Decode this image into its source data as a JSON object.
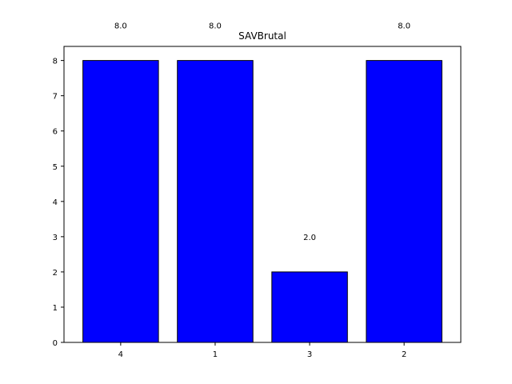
{
  "chart_data": {
    "type": "bar",
    "title": "SAVBrutal",
    "categories": [
      "4",
      "1",
      "3",
      "2"
    ],
    "values": [
      8,
      8,
      2,
      8
    ],
    "value_labels": [
      "8.0",
      "8.0",
      "2.0",
      "8.0"
    ],
    "yticks": [
      "0",
      "1",
      "2",
      "3",
      "4",
      "5",
      "6",
      "7",
      "8"
    ],
    "ylim": [
      0,
      8.4
    ],
    "xlabel": "",
    "ylabel": "",
    "grid": false,
    "bar_color": "#0000ff",
    "edge_color": "#000000"
  }
}
